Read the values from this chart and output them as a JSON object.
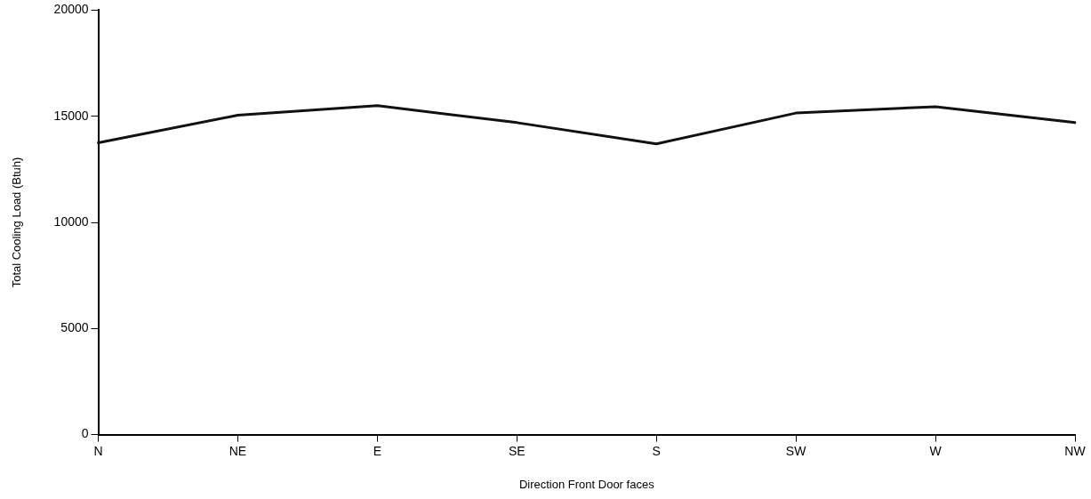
{
  "chart_data": {
    "type": "line",
    "xlabel": "Direction Front Door faces",
    "ylabel": "Total Cooling Load (Btuh)",
    "categories": [
      "N",
      "NE",
      "E",
      "SE",
      "S",
      "SW",
      "W",
      "NW"
    ],
    "series": [
      {
        "color": "#111111",
        "values": [
          13750,
          15050,
          15500,
          14700,
          13700,
          15150,
          15450,
          14700
        ]
      }
    ],
    "ylim": [
      0,
      20000
    ],
    "yticks": [
      0,
      5000,
      10000,
      15000,
      20000
    ],
    "grid": false,
    "legend": false,
    "marker": "none",
    "line_style": "solid"
  }
}
